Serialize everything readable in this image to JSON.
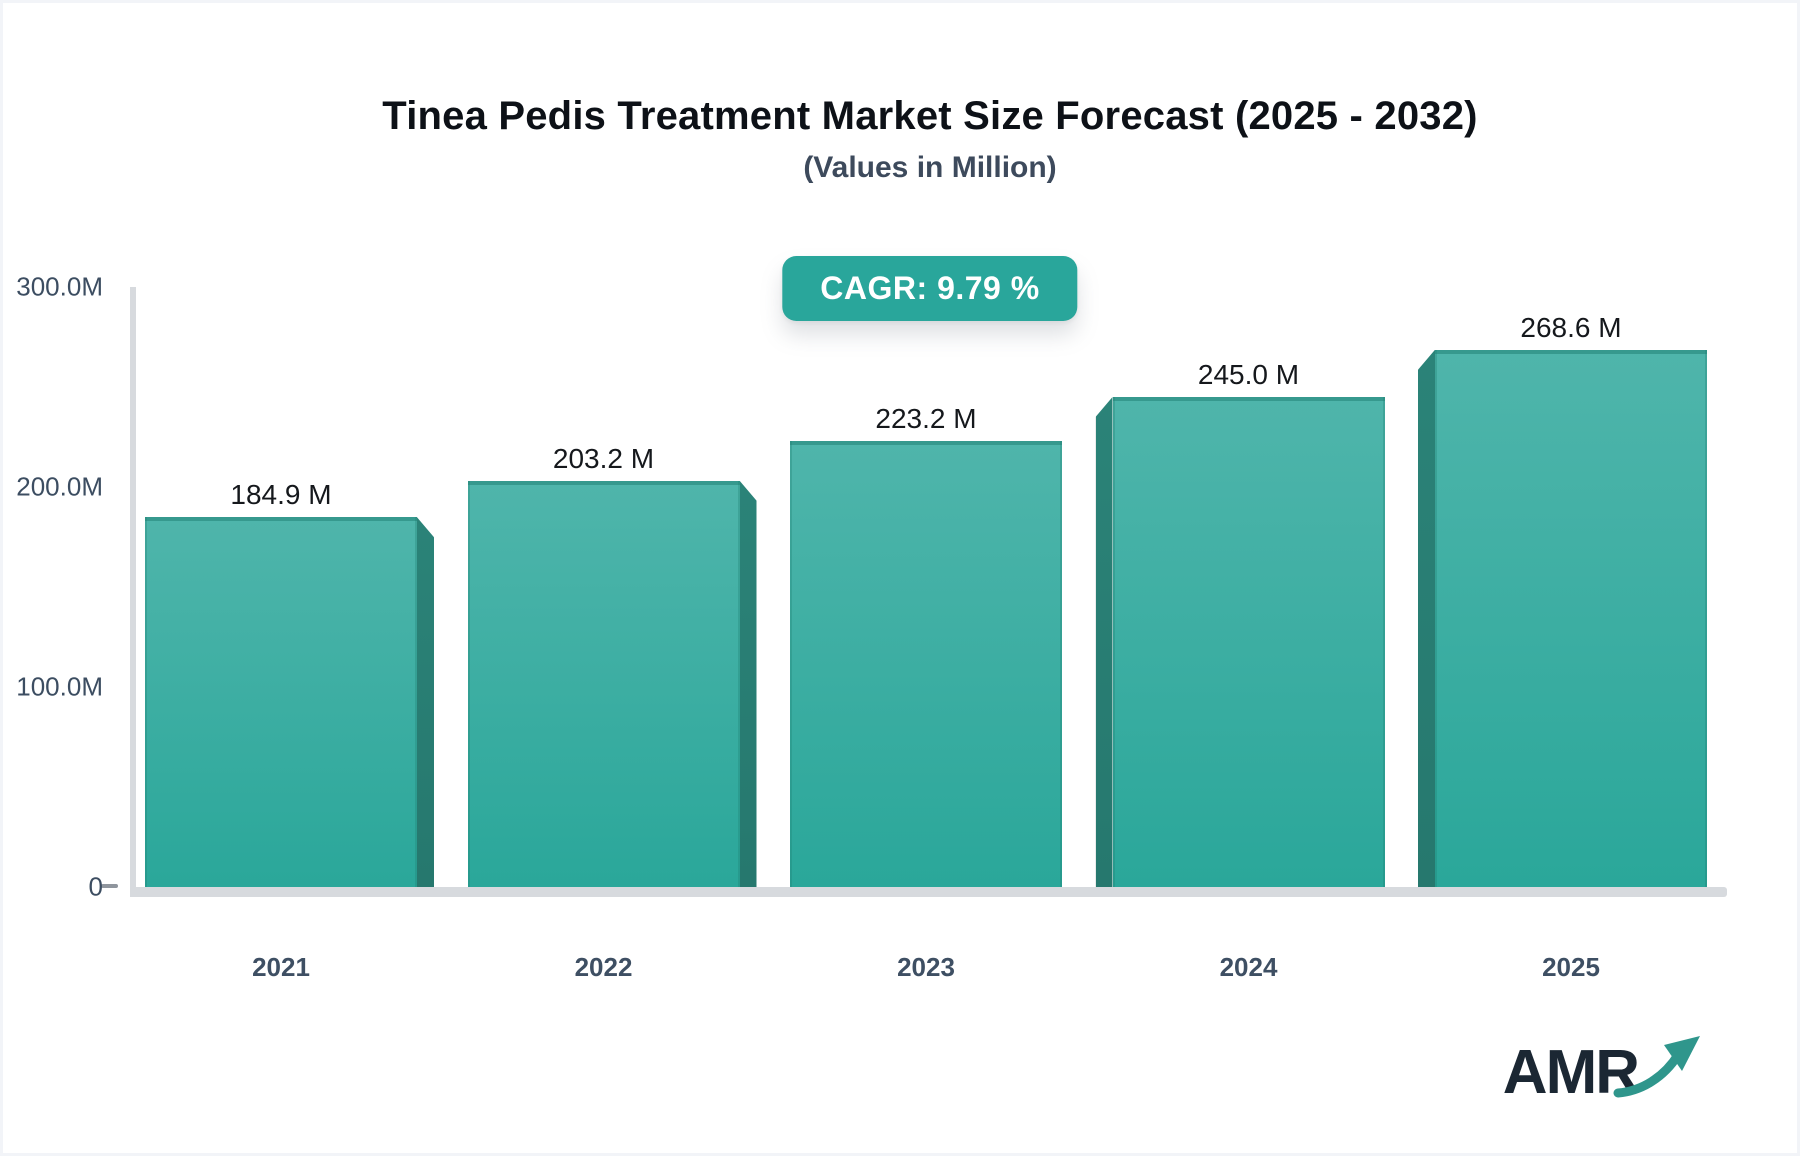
{
  "title": "Tinea Pedis Treatment Market Size Forecast (2025 - 2032)",
  "subtitle": "(Values in Million)",
  "cagr_label": "CAGR: 9.79 %",
  "logo": {
    "text": "AMR",
    "arrow_icon": "trend-up-arrow"
  },
  "colors": {
    "accent_teal": "#29a69b",
    "bar_top": "#4fb5ab",
    "bar_bottom": "#2aa79a",
    "bar_bevel": "#26786e",
    "axis_gray": "#d7dade",
    "label_slate": "#3c4d61",
    "title_dark": "#0d1117",
    "logo_dark": "#1b2733"
  },
  "chart_data": {
    "type": "bar",
    "title": "Tinea Pedis Treatment Market Size Forecast (2025 - 2032)",
    "subtitle": "(Values in Million)",
    "xlabel": "",
    "ylabel": "",
    "unit": "Million",
    "categories": [
      "2021",
      "2022",
      "2023",
      "2024",
      "2025"
    ],
    "values": [
      184.9,
      203.2,
      223.2,
      245.0,
      268.6
    ],
    "value_labels": [
      "184.9 M",
      "203.2 M",
      "223.2 M",
      "245.0 M",
      "268.6 M"
    ],
    "yticks": [
      {
        "label": "300.0M",
        "value": 300
      },
      {
        "label": "200.0M",
        "value": 200
      },
      {
        "label": "100.0M",
        "value": 100
      },
      {
        "label": "0",
        "value": 0
      }
    ],
    "ylim": [
      0,
      300
    ],
    "grid": false,
    "legend_position": "none",
    "annotation": "CAGR: 9.79 %"
  }
}
